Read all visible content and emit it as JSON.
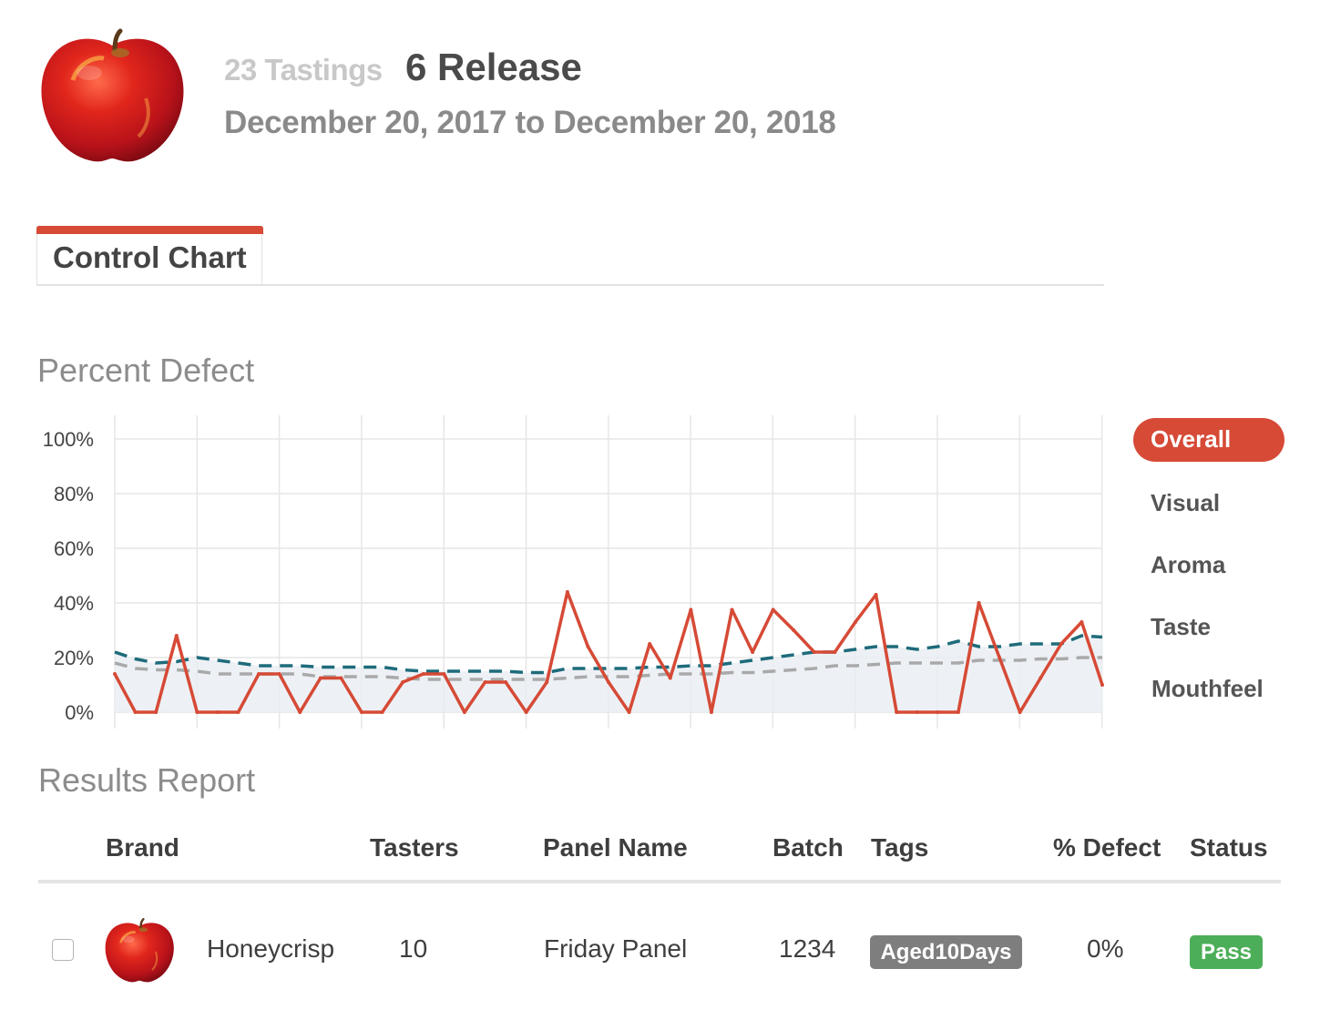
{
  "header": {
    "tastings_count": "23 Tastings",
    "title": "6 Release",
    "date_range": "December 20, 2017 to December 20, 2018",
    "product_image": "red-apple"
  },
  "tabs": [
    {
      "label": "Control Chart",
      "active": true
    }
  ],
  "colors": {
    "accent": "#d64a36",
    "defect_line": "#d64a36",
    "control_dashed": "#1e6b7b",
    "average_dashed": "#a9a9a9",
    "tag_bg": "#7e7e7e",
    "pass_bg": "#4cae58"
  },
  "percent_defect": {
    "title": "Percent Defect",
    "legend": [
      {
        "label": "Overall",
        "active": true
      },
      {
        "label": "Visual",
        "active": false
      },
      {
        "label": "Aroma",
        "active": false
      },
      {
        "label": "Taste",
        "active": false
      },
      {
        "label": "Mouthfeel",
        "active": false
      }
    ]
  },
  "chart_data": {
    "type": "line",
    "title": "Percent Defect",
    "ylim": [
      0,
      100
    ],
    "y_ticks": [
      "100%",
      "80%",
      "60%",
      "40%",
      "20%",
      "0%"
    ],
    "grid": true,
    "legend_placement": "right",
    "series": [
      {
        "name": "Overall",
        "style": "solid",
        "values": [
          14,
          0,
          0,
          28,
          0,
          0,
          0,
          14,
          14,
          0,
          12.5,
          12.5,
          0,
          0,
          11,
          14,
          14,
          0,
          11,
          11,
          0,
          11,
          44,
          24,
          11,
          0,
          25,
          12.5,
          37.5,
          0,
          37.5,
          22,
          37.5,
          30,
          22,
          22,
          33,
          43,
          0,
          0,
          0,
          0,
          40,
          20,
          0,
          12.5,
          25,
          33,
          10
        ]
      },
      {
        "style": "dashed",
        "values": [
          22,
          19.5,
          18,
          18.5,
          20,
          19,
          18,
          17,
          17,
          17,
          16.5,
          16.5,
          16.5,
          16.5,
          15.5,
          15,
          15,
          15,
          15,
          15,
          14.5,
          14.5,
          16,
          16,
          16,
          16,
          16.5,
          16.5,
          17,
          17,
          18,
          19,
          20,
          21,
          22,
          22,
          23,
          24,
          24,
          23,
          24,
          26,
          24,
          24,
          25,
          25,
          25,
          28,
          27.5
        ]
      },
      {
        "style": "dashed",
        "values": [
          18,
          16,
          15.5,
          15.5,
          15,
          14,
          14,
          14,
          14,
          14,
          13,
          13,
          13,
          13,
          12.5,
          12,
          12,
          12,
          12,
          12,
          12,
          12,
          12.5,
          13,
          13,
          13,
          13.5,
          14,
          14,
          14,
          14.5,
          14.5,
          15,
          15.5,
          16,
          17,
          17,
          17.5,
          18,
          18,
          18,
          18,
          19,
          19,
          19,
          19.5,
          19.5,
          20,
          20
        ]
      }
    ]
  },
  "results_report": {
    "title": "Results Report",
    "columns": [
      "Brand",
      "Tasters",
      "Panel Name",
      "Batch",
      "Tags",
      "% Defect",
      "Status"
    ],
    "rows": [
      {
        "brand": "Honeycrisp",
        "tasters": "10",
        "panel_name": "Friday Panel",
        "batch": "1234",
        "tag": "Aged10Days",
        "defect": "0%",
        "status": "Pass"
      }
    ]
  }
}
